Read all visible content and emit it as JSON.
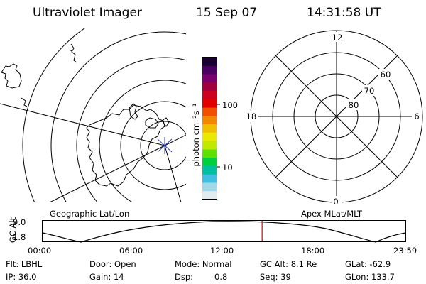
{
  "header": {
    "title": "Ultraviolet Imager",
    "date": "15 Sep 07",
    "time": "14:31:58 UT"
  },
  "colorbar": {
    "unit_label": "photon cm⁻²s⁻¹",
    "tick_labels": [
      "100",
      "10"
    ],
    "colors": [
      "#1a0030",
      "#4a0060",
      "#7a0070",
      "#a00040",
      "#cc0020",
      "#e00000",
      "#f05000",
      "#f08800",
      "#f0c000",
      "#e8e800",
      "#c0e800",
      "#60e000",
      "#00d040",
      "#00c0a0",
      "#40c0e0",
      "#a0d8e8",
      "#e0ecf0"
    ]
  },
  "panels": {
    "left_label": "Geographic Lat/Lon",
    "right_label": "Apex MLat/MLT",
    "polar": {
      "mlt_labels": {
        "top": "12",
        "right": "6",
        "bottom": "0",
        "left": "18"
      },
      "lat_labels": [
        "60",
        "70",
        "80"
      ]
    }
  },
  "altitude_plot": {
    "axis_label": "GC Alt",
    "y_ticks": [
      "9.0",
      "1.8"
    ],
    "x_ticks": [
      "00:00",
      "06:00",
      "12:00",
      "18:00",
      "23:59"
    ],
    "current_time_fraction": 0.605,
    "marker_color": "#dd0000"
  },
  "info": {
    "filter": "Flt: LBHL",
    "ip": "IP: 36.0",
    "door": "Door: Open",
    "gain": "Gain: 14",
    "mode": "Mode: Normal",
    "dsp_label": "Dsp:",
    "dsp_value": "0.8",
    "gc_alt": "GC Alt: 8.1 Re",
    "seq": "Seq: 39",
    "glat": "GLat: -62.9",
    "glon": "GLon: 133.7"
  }
}
